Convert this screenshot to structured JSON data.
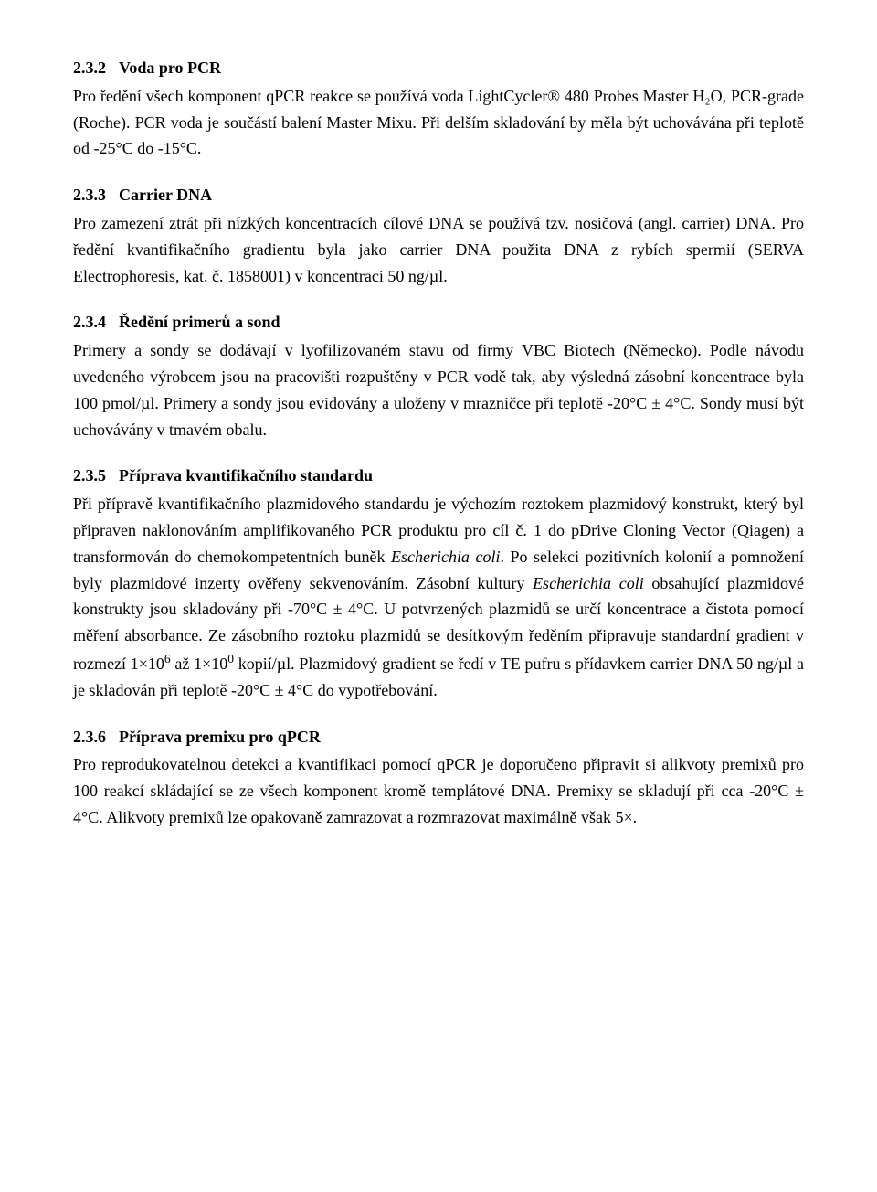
{
  "sections": {
    "s232": {
      "number": "2.3.2",
      "title": "Voda pro PCR",
      "body": "Pro ředění všech komponent qPCR reakce se používá voda LightCycler® 480 Probes Master H₂O, PCR-grade (Roche). PCR voda je součástí balení Master Mixu. Při delším skladování by měla být uchovávána při teplotě od -25°C do -15°C."
    },
    "s233": {
      "number": "2.3.3",
      "title": "Carrier DNA",
      "body": "Pro zamezení ztrát při nízkých koncentracích cílové DNA se používá tzv. nosičová (angl. carrier) DNA. Pro ředění kvantifikačního gradientu byla jako carrier DNA použita DNA z rybích spermií (SERVA Electrophoresis, kat. č. 1858001) v koncentraci 50 ng/µl."
    },
    "s234": {
      "number": "2.3.4",
      "title": "Ředění primerů a sond",
      "body": "Primery a sondy se dodávají v lyofilizovaném stavu od firmy VBC Biotech (Německo). Podle návodu uvedeného výrobcem jsou na pracovišti rozpuštěny v PCR vodě tak, aby výsledná zásobní koncentrace byla 100 pmol/µl. Primery a sondy jsou evidovány a uloženy v mrazničce při teplotě -20°C ± 4°C. Sondy musí být uchovávány v tmavém obalu."
    },
    "s235": {
      "number": "2.3.5",
      "title": "Příprava kvantifikačního standardu",
      "body_parts": {
        "p1": "Při přípravě kvantifikačního plazmidového standardu je výchozím roztokem plazmidový konstrukt, který byl připraven naklonováním amplifikovaného PCR produktu pro cíl č. 1 do pDrive Cloning Vector (Qiagen) a transformován do chemokompetentních buněk ",
        "i1": "Escherichia coli",
        "p2": ". Po selekci pozitivních kolonií a pomnožení byly plazmidové inzerty ověřeny sekvenováním. Zásobní kultury ",
        "i2": "Escherichia coli",
        "p3": " obsahující plazmidové konstrukty jsou skladovány při -70°C ± 4°C. U potvrzených plazmidů se určí koncentrace a čistota pomocí měření absorbance. Ze zásobního roztoku plazmidů se desítkovým ředěním připravuje standardní gradient v rozmezí 1×10",
        "sup6": "6",
        "p4": " až 1×10",
        "sup0": "0",
        "p5": " kopií/µl. Plazmidový gradient se ředí v TE pufru s přídavkem carrier DNA 50 ng/µl a je skladován při teplotě -20°C ± 4°C do vypotřebování."
      }
    },
    "s236": {
      "number": "2.3.6",
      "title": "Příprava premixu pro qPCR",
      "body": "Pro reprodukovatelnou detekci a kvantifikaci pomocí qPCR je doporučeno připravit si alikvoty premixů pro 100 reakcí skládající se ze všech komponent kromě templátové DNA. Premixy se skladují při cca -20°C ± 4°C. Alikvoty premixů lze opakovaně zamrazovat a rozmrazovat maximálně však 5×."
    }
  }
}
